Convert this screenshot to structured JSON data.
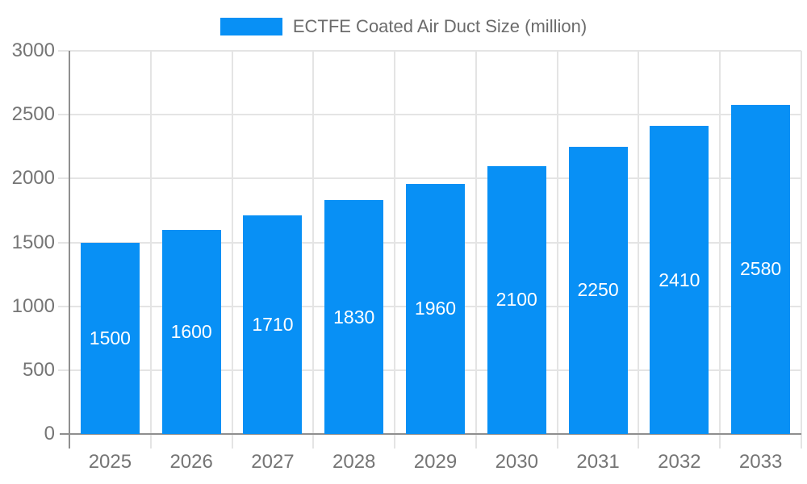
{
  "legend": {
    "label": "ECTFE Coated Air Duct Size (million)"
  },
  "colors": {
    "bar": "#0890F5",
    "axis": "#8f8f8f",
    "grid": "#e4e4e4",
    "axis_label": "#757575",
    "legend_label": "#6b6b6b",
    "bar_label": "#ffffff",
    "background": "#ffffff"
  },
  "chart_data": {
    "type": "bar",
    "title": "ECTFE Coated Air Duct Size (million)",
    "series_name": "ECTFE Coated Air Duct Size (million)",
    "categories": [
      "2025",
      "2026",
      "2027",
      "2028",
      "2029",
      "2030",
      "2031",
      "2032",
      "2033"
    ],
    "values": [
      1500,
      1600,
      1710,
      1830,
      1960,
      2100,
      2250,
      2410,
      2580
    ],
    "xlabel": "",
    "ylabel": "",
    "ylim": [
      0,
      3000
    ],
    "yticks": [
      0,
      500,
      1000,
      1500,
      2000,
      2500,
      3000
    ],
    "grid": true,
    "legend_position": "top-center",
    "bar_label_position": "inside-middle"
  }
}
